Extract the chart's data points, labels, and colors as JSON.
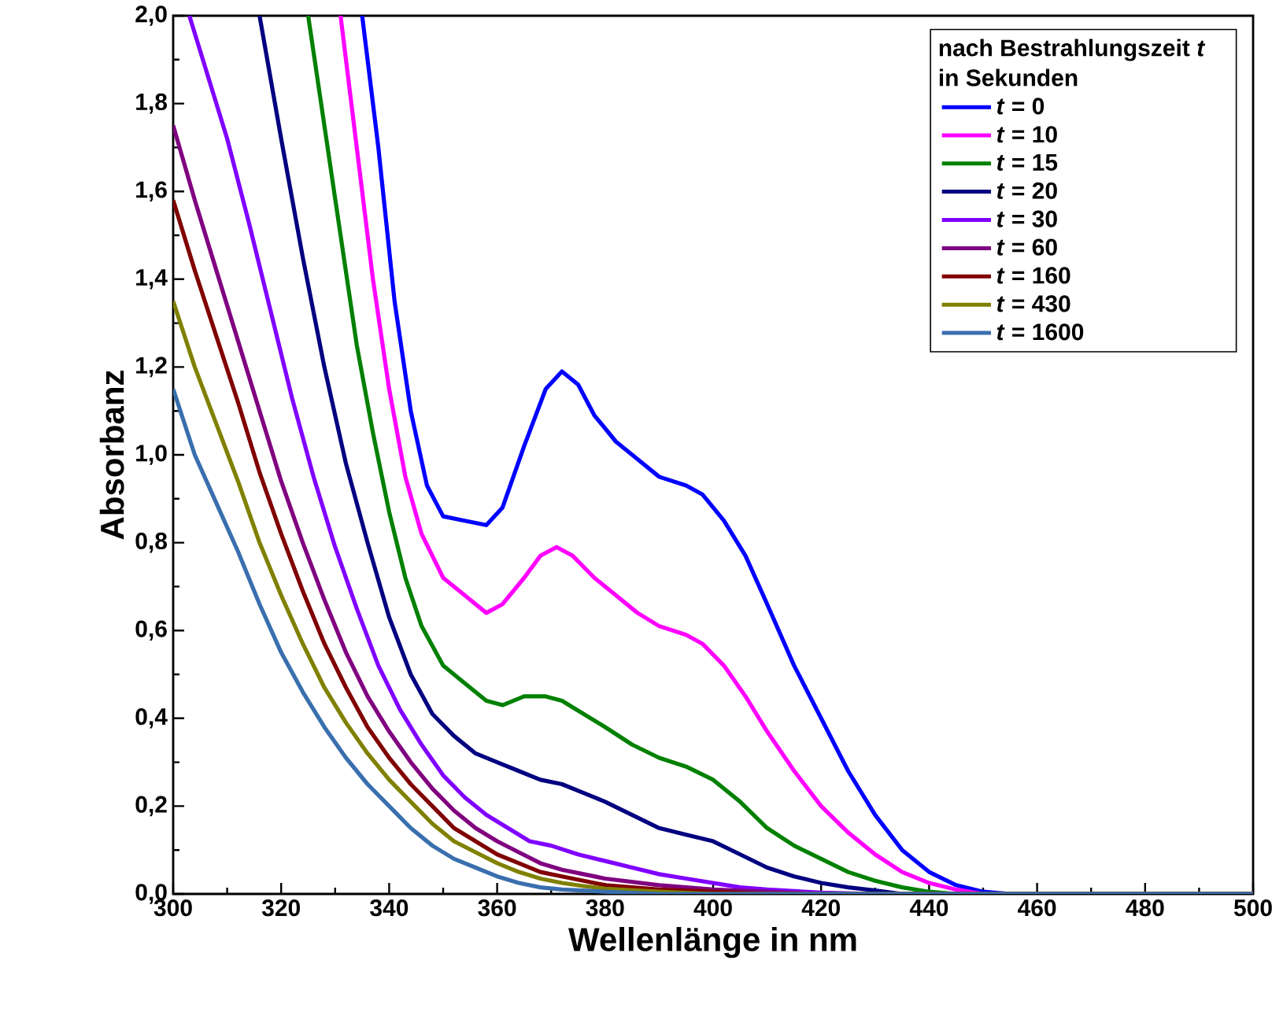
{
  "chart_data": {
    "type": "line",
    "xlabel": "Wellenlänge in nm",
    "ylabel": "Absorbanz",
    "legend_title": "nach Bestrahlungszeit *t* in Sekunden",
    "legend": "top right",
    "marker": "none",
    "line_style": "solid",
    "grid": false,
    "xlim": [
      300,
      500
    ],
    "ylim": [
      0,
      2
    ],
    "xticks": [
      300,
      320,
      340,
      360,
      380,
      400,
      420,
      440,
      460,
      480,
      500
    ],
    "yticks": [
      {
        "value": 0,
        "label": "0,0"
      },
      {
        "value": 0.2,
        "label": "0,2"
      },
      {
        "value": 0.4,
        "label": "0,4"
      },
      {
        "value": 0.6,
        "label": "0,6"
      },
      {
        "value": 0.8,
        "label": "0,8"
      },
      {
        "value": 1.0,
        "label": "1,0"
      },
      {
        "value": 1.2,
        "label": "1,2"
      },
      {
        "value": 1.4,
        "label": "1,4"
      },
      {
        "value": 1.6,
        "label": "1,6"
      },
      {
        "value": 1.8,
        "label": "1,8"
      },
      {
        "value": 2.0,
        "label": "2,0"
      }
    ],
    "series": [
      {
        "name": "*t* = 0",
        "color": "#0000ff",
        "x": [
          335,
          338,
          341,
          344,
          347,
          350,
          354,
          358,
          361,
          365,
          369,
          372,
          375,
          378,
          382,
          386,
          390,
          395,
          398,
          402,
          406,
          410,
          415,
          420,
          425,
          430,
          435,
          440,
          445,
          450,
          455,
          500
        ],
        "values": [
          2.0,
          1.7,
          1.35,
          1.1,
          0.93,
          0.86,
          0.85,
          0.84,
          0.88,
          1.02,
          1.15,
          1.19,
          1.16,
          1.09,
          1.03,
          0.99,
          0.95,
          0.93,
          0.91,
          0.85,
          0.77,
          0.66,
          0.52,
          0.4,
          0.28,
          0.18,
          0.1,
          0.05,
          0.02,
          0.005,
          0,
          0
        ]
      },
      {
        "name": "*t* = 10",
        "color": "#ff00ff",
        "x": [
          331,
          334,
          337,
          340,
          343,
          346,
          350,
          354,
          358,
          361,
          365,
          368,
          371,
          374,
          378,
          382,
          386,
          390,
          395,
          398,
          402,
          406,
          410,
          415,
          420,
          425,
          430,
          435,
          440,
          445,
          450,
          500
        ],
        "values": [
          2.0,
          1.7,
          1.4,
          1.15,
          0.95,
          0.82,
          0.72,
          0.68,
          0.64,
          0.66,
          0.72,
          0.77,
          0.79,
          0.77,
          0.72,
          0.68,
          0.64,
          0.61,
          0.59,
          0.57,
          0.52,
          0.45,
          0.37,
          0.28,
          0.2,
          0.14,
          0.09,
          0.05,
          0.025,
          0.01,
          0,
          0
        ]
      },
      {
        "name": "*t* = 15",
        "color": "#008000",
        "x": [
          325,
          328,
          331,
          334,
          337,
          340,
          343,
          346,
          350,
          354,
          358,
          361,
          365,
          369,
          372,
          376,
          380,
          385,
          390,
          395,
          400,
          405,
          410,
          415,
          420,
          425,
          430,
          435,
          440,
          445,
          500
        ],
        "values": [
          2.0,
          1.75,
          1.5,
          1.25,
          1.05,
          0.87,
          0.72,
          0.61,
          0.52,
          0.48,
          0.44,
          0.43,
          0.45,
          0.45,
          0.44,
          0.41,
          0.38,
          0.34,
          0.31,
          0.29,
          0.26,
          0.21,
          0.15,
          0.11,
          0.08,
          0.05,
          0.03,
          0.015,
          0.005,
          0,
          0
        ]
      },
      {
        "name": "*t* = 20",
        "color": "#000080",
        "x": [
          316,
          320,
          324,
          328,
          332,
          336,
          340,
          344,
          348,
          352,
          356,
          360,
          364,
          368,
          372,
          376,
          380,
          385,
          390,
          395,
          400,
          405,
          410,
          415,
          420,
          425,
          430,
          435,
          500
        ],
        "values": [
          2.0,
          1.72,
          1.45,
          1.2,
          0.98,
          0.8,
          0.63,
          0.5,
          0.41,
          0.36,
          0.32,
          0.3,
          0.28,
          0.26,
          0.25,
          0.23,
          0.21,
          0.18,
          0.15,
          0.135,
          0.12,
          0.09,
          0.06,
          0.04,
          0.025,
          0.015,
          0.008,
          0,
          0
        ]
      },
      {
        "name": "*t* = 30",
        "color": "#8000ff",
        "x": [
          303,
          306,
          310,
          314,
          318,
          322,
          326,
          330,
          334,
          338,
          342,
          346,
          350,
          354,
          358,
          362,
          366,
          370,
          375,
          380,
          385,
          390,
          395,
          400,
          405,
          410,
          420,
          430,
          500
        ],
        "values": [
          2.0,
          1.88,
          1.72,
          1.53,
          1.33,
          1.13,
          0.95,
          0.79,
          0.65,
          0.52,
          0.42,
          0.34,
          0.27,
          0.22,
          0.18,
          0.15,
          0.12,
          0.11,
          0.09,
          0.075,
          0.06,
          0.045,
          0.035,
          0.025,
          0.015,
          0.01,
          0.003,
          0,
          0
        ]
      },
      {
        "name": "*t* = 60",
        "color": "#800080",
        "x": [
          300,
          304,
          308,
          312,
          316,
          320,
          324,
          328,
          332,
          336,
          340,
          344,
          348,
          352,
          356,
          360,
          364,
          368,
          372,
          376,
          380,
          390,
          400,
          410,
          420,
          500
        ],
        "values": [
          1.75,
          1.58,
          1.42,
          1.26,
          1.1,
          0.94,
          0.8,
          0.67,
          0.55,
          0.45,
          0.37,
          0.3,
          0.24,
          0.19,
          0.15,
          0.12,
          0.095,
          0.07,
          0.055,
          0.045,
          0.035,
          0.02,
          0.01,
          0.005,
          0,
          0
        ]
      },
      {
        "name": "*t* = 160",
        "color": "#800000",
        "x": [
          300,
          304,
          308,
          312,
          316,
          320,
          324,
          328,
          332,
          336,
          340,
          344,
          348,
          352,
          356,
          360,
          364,
          368,
          372,
          376,
          380,
          390,
          400,
          410,
          500
        ],
        "values": [
          1.58,
          1.42,
          1.27,
          1.12,
          0.96,
          0.82,
          0.69,
          0.57,
          0.47,
          0.38,
          0.31,
          0.25,
          0.2,
          0.15,
          0.12,
          0.09,
          0.07,
          0.05,
          0.04,
          0.03,
          0.02,
          0.01,
          0.005,
          0,
          0
        ]
      },
      {
        "name": "*t* = 430",
        "color": "#808000",
        "x": [
          300,
          304,
          308,
          312,
          316,
          320,
          324,
          328,
          332,
          336,
          340,
          344,
          348,
          352,
          356,
          360,
          364,
          368,
          372,
          376,
          380,
          390,
          400,
          500
        ],
        "values": [
          1.35,
          1.2,
          1.07,
          0.94,
          0.8,
          0.68,
          0.57,
          0.47,
          0.39,
          0.32,
          0.26,
          0.21,
          0.16,
          0.12,
          0.095,
          0.07,
          0.05,
          0.035,
          0.025,
          0.018,
          0.012,
          0.005,
          0,
          0
        ]
      },
      {
        "name": "*t* = 1600",
        "color": "#3a6fae",
        "x": [
          300,
          304,
          308,
          312,
          316,
          320,
          324,
          328,
          332,
          336,
          340,
          344,
          348,
          352,
          356,
          360,
          364,
          368,
          372,
          380,
          390,
          500
        ],
        "values": [
          1.15,
          1.0,
          0.89,
          0.78,
          0.66,
          0.55,
          0.46,
          0.38,
          0.31,
          0.25,
          0.2,
          0.15,
          0.11,
          0.08,
          0.06,
          0.04,
          0.025,
          0.015,
          0.01,
          0.005,
          0,
          0
        ]
      }
    ]
  }
}
